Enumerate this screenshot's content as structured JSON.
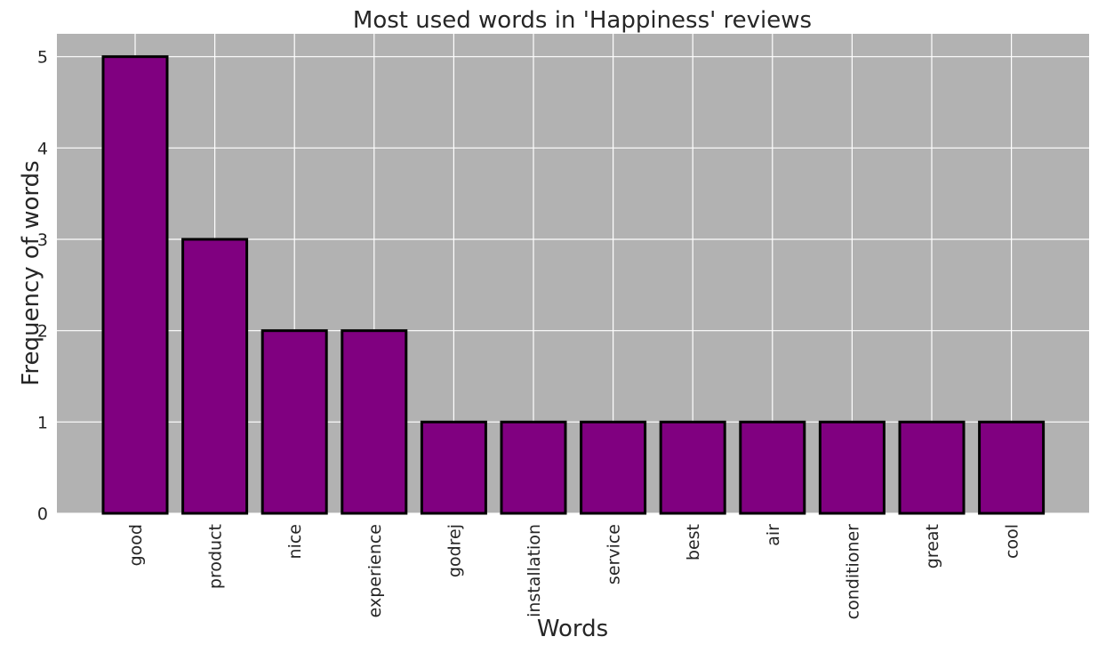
{
  "chart_data": {
    "type": "bar",
    "title": "Most used words in 'Happiness' reviews",
    "xlabel": "Words",
    "ylabel": "Frequency of words",
    "categories": [
      "good",
      "product",
      "nice",
      "experience",
      "godrej",
      "installation",
      "service",
      "best",
      "air",
      "conditioner",
      "great",
      "cool"
    ],
    "values": [
      5,
      3,
      2,
      2,
      1,
      1,
      1,
      1,
      1,
      1,
      1,
      1
    ],
    "ylim": [
      0,
      5.25
    ],
    "yticks": [
      "0",
      "1",
      "2",
      "3",
      "4",
      "5"
    ],
    "grid": true,
    "x_tick_rotation": "vertical",
    "colors": {
      "bar_fill": "#800080",
      "bar_edge": "#000000",
      "plot_background": "#b2b2b2",
      "grid": "#ffffff",
      "text": "#262626"
    }
  }
}
